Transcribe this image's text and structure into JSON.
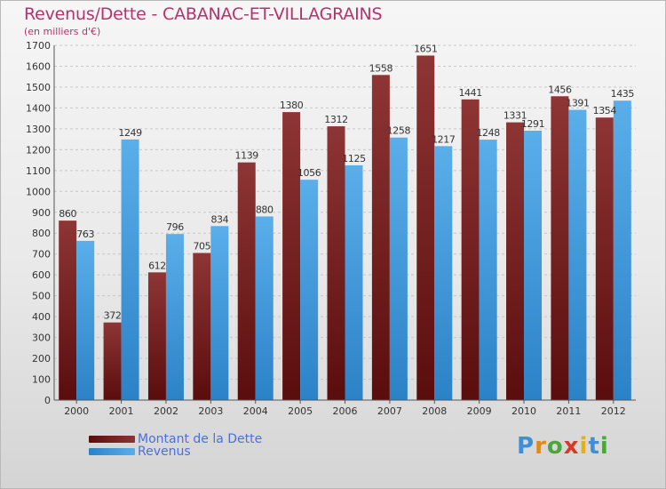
{
  "header": {
    "title": "Revenus/Dette - CABANAC-ET-VILLAGRAINS",
    "subtitle": "(en milliers d'€)"
  },
  "legend": {
    "items": [
      {
        "label": "Montant de la Dette",
        "color": "#7a1e1e"
      },
      {
        "label": "Revenus",
        "color": "#3f99e0"
      }
    ]
  },
  "brand": {
    "text": "Proxiti"
  },
  "chart_data": {
    "type": "bar",
    "title": "Revenus/Dette - CABANAC-ET-VILLAGRAINS",
    "ylabel": "(en milliers d'€)",
    "xlabel": "",
    "ylim": [
      0,
      1700
    ],
    "ytick_step": 100,
    "grid": true,
    "legend_position": "bottom-left",
    "categories": [
      "2000",
      "2001",
      "2002",
      "2003",
      "2004",
      "2005",
      "2006",
      "2007",
      "2008",
      "2009",
      "2010",
      "2011",
      "2012"
    ],
    "series": [
      {
        "name": "Montant de la Dette",
        "color": "#7a1e1e",
        "values": [
          860,
          372,
          612,
          705,
          1139,
          1380,
          1312,
          1558,
          1651,
          1441,
          1331,
          1456,
          1354
        ]
      },
      {
        "name": "Revenus",
        "color": "#3f99e0",
        "values": [
          763,
          1249,
          796,
          834,
          880,
          1056,
          1125,
          1258,
          1217,
          1248,
          1291,
          1391,
          1435
        ]
      }
    ]
  }
}
